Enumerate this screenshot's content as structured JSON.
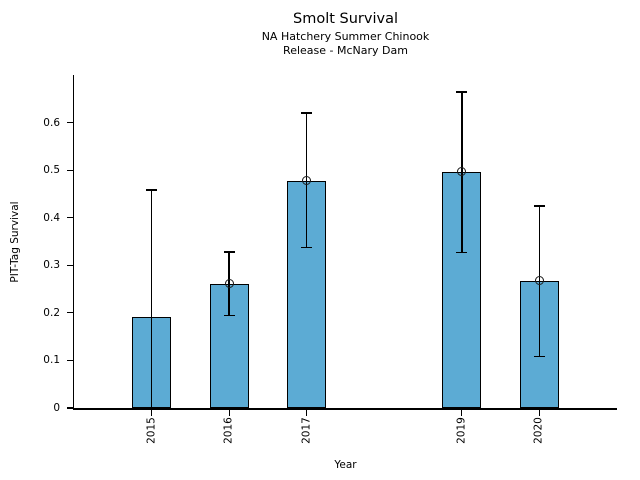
{
  "figure": {
    "title": "Smolt Survival",
    "subtitle1": "NA Hatchery Summer Chinook",
    "subtitle2": "Release - McNary Dam",
    "xlabel": "Year",
    "ylabel": "PIT-Tag Survival"
  },
  "chart_data": {
    "type": "bar",
    "title": "Smolt Survival",
    "subtitle": "NA Hatchery Summer Chinook / Release - McNary Dam",
    "xlabel": "Year",
    "ylabel": "PIT-Tag Survival",
    "x": [
      2015,
      2016,
      2017,
      2019,
      2020
    ],
    "x_tick_labels": [
      "2015",
      "2016",
      "2017",
      "2019",
      "2020"
    ],
    "values": [
      0.192,
      0.261,
      0.478,
      0.497,
      0.267
    ],
    "err_low": [
      0.0,
      0.194,
      0.337,
      0.327,
      0.108
    ],
    "err_high": [
      0.458,
      0.328,
      0.62,
      0.664,
      0.425
    ],
    "point_marker_shown": [
      false,
      true,
      true,
      true,
      true
    ],
    "xlim": [
      2014,
      2021
    ],
    "ylim": [
      0,
      0.7
    ],
    "yticks": [
      0,
      0.1,
      0.2,
      0.3,
      0.4,
      0.5,
      0.6
    ],
    "ytick_labels": [
      "0",
      "0.1",
      "0.2",
      "0.3",
      "0.4",
      "0.5",
      "0.6"
    ],
    "bar_width_years": 0.5,
    "bar_color": "#5CABD4",
    "bar_edge_color": "#000000",
    "errorbar_color": "#000000",
    "grid": false,
    "legend": null
  }
}
